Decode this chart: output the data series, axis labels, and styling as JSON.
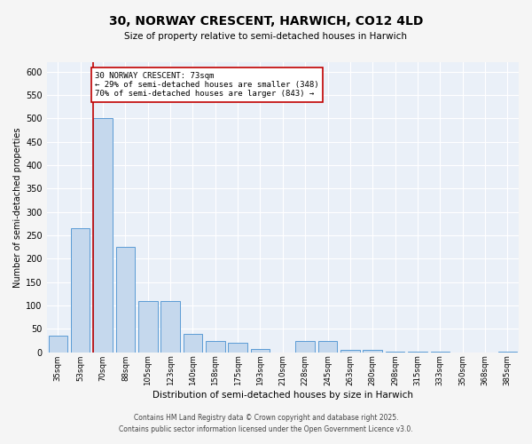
{
  "title": "30, NORWAY CRESCENT, HARWICH, CO12 4LD",
  "subtitle": "Size of property relative to semi-detached houses in Harwich",
  "xlabel": "Distribution of semi-detached houses by size in Harwich",
  "ylabel": "Number of semi-detached properties",
  "categories": [
    "35sqm",
    "53sqm",
    "70sqm",
    "88sqm",
    "105sqm",
    "123sqm",
    "140sqm",
    "158sqm",
    "175sqm",
    "193sqm",
    "210sqm",
    "228sqm",
    "245sqm",
    "263sqm",
    "280sqm",
    "298sqm",
    "315sqm",
    "333sqm",
    "350sqm",
    "368sqm",
    "385sqm"
  ],
  "values": [
    35,
    265,
    500,
    225,
    110,
    110,
    40,
    25,
    20,
    8,
    0,
    25,
    25,
    5,
    5,
    2,
    1,
    1,
    0,
    0,
    1
  ],
  "bar_color": "#c5d8ed",
  "bar_edge_color": "#5b9bd5",
  "property_index": 2,
  "property_label": "30 NORWAY CRESCENT: 73sqm",
  "annotation_line1": "← 29% of semi-detached houses are smaller (348)",
  "annotation_line2": "70% of semi-detached houses are larger (843) →",
  "vline_color": "#c00000",
  "annotation_box_color": "#ffffff",
  "annotation_box_edge": "#c00000",
  "ylim": [
    0,
    620
  ],
  "yticks": [
    0,
    50,
    100,
    150,
    200,
    250,
    300,
    350,
    400,
    450,
    500,
    550,
    600
  ],
  "background_color": "#eaf0f8",
  "grid_color": "#ffffff",
  "fig_bg_color": "#f5f5f5",
  "footer_line1": "Contains HM Land Registry data © Crown copyright and database right 2025.",
  "footer_line2": "Contains public sector information licensed under the Open Government Licence v3.0."
}
